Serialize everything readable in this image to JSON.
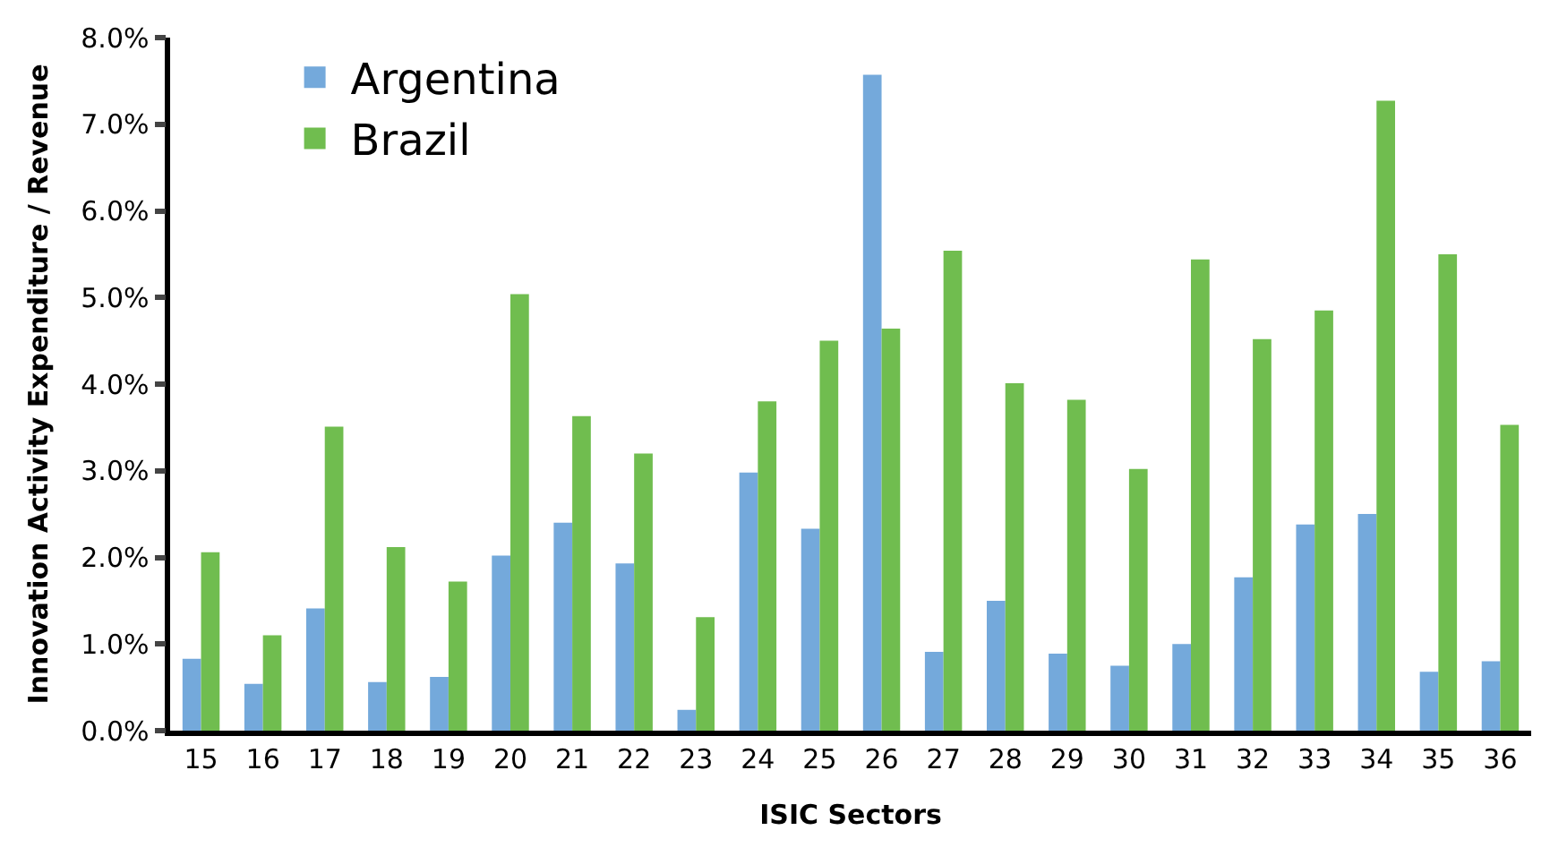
{
  "chart_data": {
    "type": "bar",
    "xlabel": "ISIC Sectors",
    "ylabel": "Innovation Activity Expenditure / Revenue",
    "categories": [
      "15",
      "16",
      "17",
      "18",
      "19",
      "20",
      "21",
      "22",
      "23",
      "24",
      "25",
      "26",
      "27",
      "28",
      "29",
      "30",
      "31",
      "32",
      "33",
      "34",
      "35",
      "36"
    ],
    "series": [
      {
        "name": "Argentina",
        "color": "#74a9db",
        "values": [
          0.83,
          0.54,
          1.41,
          0.56,
          0.62,
          2.02,
          2.4,
          1.93,
          0.24,
          2.98,
          2.33,
          7.57,
          0.91,
          1.5,
          0.89,
          0.75,
          1.0,
          1.77,
          2.38,
          2.5,
          0.68,
          0.8
        ]
      },
      {
        "name": "Brazil",
        "color": "#70bd4f",
        "values": [
          2.06,
          1.1,
          3.51,
          2.12,
          1.72,
          5.04,
          3.63,
          3.2,
          1.31,
          3.8,
          4.5,
          4.64,
          5.54,
          4.01,
          3.82,
          3.02,
          5.44,
          4.52,
          4.85,
          7.27,
          5.5,
          3.53
        ]
      }
    ],
    "ylim": [
      0,
      8
    ],
    "yticks": [
      {
        "value": 0,
        "label": "0.0%"
      },
      {
        "value": 1,
        "label": "1.0%"
      },
      {
        "value": 2,
        "label": "2.0%"
      },
      {
        "value": 3,
        "label": "3.0%"
      },
      {
        "value": 4,
        "label": "4.0%"
      },
      {
        "value": 5,
        "label": "5.0%"
      },
      {
        "value": 6,
        "label": "6.0%"
      },
      {
        "value": 7,
        "label": "7.0%"
      },
      {
        "value": 8,
        "label": "8.0%"
      }
    ],
    "legend": "top left"
  }
}
